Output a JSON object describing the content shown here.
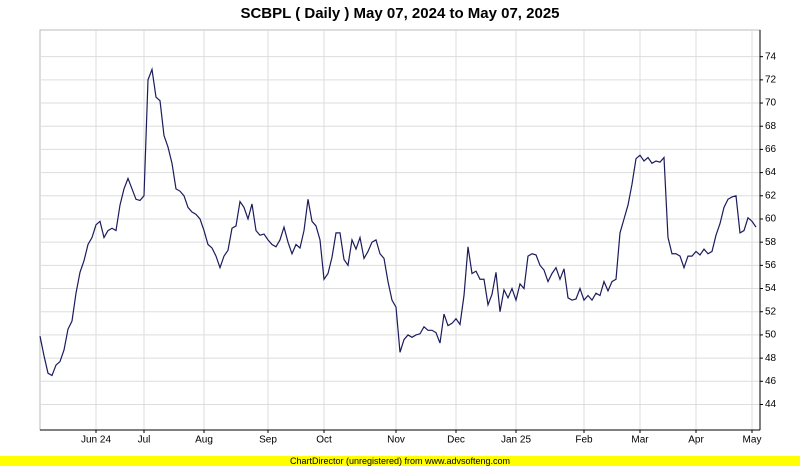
{
  "chart_data": {
    "type": "line",
    "title": "SCBPL ( Daily ) May 07, 2024 to May 07, 2025",
    "color": "#1b1b5c",
    "grid": true,
    "y_axis_side": "right",
    "categories": [
      null,
      null,
      null,
      null,
      null,
      null,
      null,
      null,
      null,
      null,
      null,
      null,
      null,
      null,
      "Jun 24",
      null,
      null,
      null,
      null,
      null,
      null,
      null,
      null,
      null,
      null,
      null,
      "Jul",
      null,
      null,
      null,
      null,
      null,
      null,
      null,
      null,
      null,
      null,
      null,
      null,
      null,
      null,
      "Aug",
      null,
      null,
      null,
      null,
      null,
      null,
      null,
      null,
      null,
      null,
      null,
      null,
      null,
      null,
      null,
      "Sep",
      null,
      null,
      null,
      null,
      null,
      null,
      null,
      null,
      null,
      null,
      null,
      null,
      null,
      "Oct",
      null,
      null,
      null,
      null,
      null,
      null,
      null,
      null,
      null,
      null,
      null,
      null,
      null,
      null,
      null,
      null,
      null,
      "Nov",
      null,
      null,
      null,
      null,
      null,
      null,
      null,
      null,
      null,
      null,
      null,
      null,
      null,
      null,
      "Dec",
      null,
      null,
      null,
      null,
      null,
      null,
      null,
      null,
      null,
      null,
      null,
      null,
      null,
      null,
      "Jan 25",
      null,
      null,
      null,
      null,
      null,
      null,
      null,
      null,
      null,
      null,
      null,
      null,
      null,
      null,
      null,
      null,
      "Feb",
      null,
      null,
      null,
      null,
      null,
      null,
      null,
      null,
      null,
      null,
      null,
      null,
      null,
      "Mar",
      null,
      null,
      null,
      null,
      null,
      null,
      null,
      null,
      null,
      null,
      null,
      null,
      null,
      "Apr",
      null,
      null,
      null,
      null,
      null,
      null,
      null,
      null,
      null,
      null,
      null,
      null,
      null,
      "May",
      null
    ],
    "values": [
      49.9,
      48.2,
      46.7,
      46.5,
      47.4,
      47.7,
      48.7,
      50.5,
      51.2,
      53.6,
      55.4,
      56.4,
      57.8,
      58.4,
      59.5,
      59.8,
      58.4,
      59.0,
      59.2,
      59.0,
      61.2,
      62.6,
      63.5,
      62.6,
      61.7,
      61.6,
      62.0,
      72.0,
      72.9,
      70.5,
      70.2,
      67.2,
      66.2,
      64.8,
      62.6,
      62.4,
      62.0,
      61.0,
      60.6,
      60.4,
      60.0,
      59.0,
      57.8,
      57.5,
      56.8,
      55.8,
      56.8,
      57.3,
      59.2,
      59.4,
      61.5,
      61.0,
      60.0,
      61.3,
      59.0,
      58.6,
      58.7,
      58.2,
      57.8,
      57.6,
      58.2,
      59.3,
      58.0,
      57.0,
      57.8,
      57.5,
      59.0,
      61.7,
      59.8,
      59.4,
      58.2,
      54.8,
      55.3,
      56.7,
      58.8,
      58.8,
      56.5,
      56.0,
      58.2,
      57.4,
      58.4,
      56.6,
      57.2,
      58.0,
      58.2,
      57.0,
      56.6,
      54.6,
      53.0,
      52.4,
      48.5,
      49.6,
      50.0,
      49.8,
      50.0,
      50.1,
      50.7,
      50.4,
      50.4,
      50.2,
      49.3,
      51.8,
      50.8,
      51.0,
      51.4,
      50.9,
      53.4,
      57.6,
      55.3,
      55.5,
      54.8,
      54.8,
      52.6,
      53.5,
      55.4,
      52.0,
      53.9,
      53.2,
      54.0,
      53.0,
      54.4,
      54.0,
      56.8,
      57.0,
      56.9,
      56.0,
      55.6,
      54.6,
      55.3,
      55.8,
      54.8,
      55.7,
      53.2,
      53.0,
      53.1,
      54.0,
      53.0,
      53.4,
      53.0,
      53.6,
      53.4,
      54.6,
      53.8,
      54.6,
      54.8,
      58.8,
      60.0,
      61.2,
      63.0,
      65.2,
      65.5,
      65.0,
      65.3,
      64.8,
      65.0,
      64.9,
      65.3,
      58.4,
      57.0,
      57.0,
      56.8,
      55.8,
      56.8,
      56.8,
      57.2,
      56.9,
      57.4,
      57.0,
      57.2,
      58.6,
      59.6,
      61.0,
      61.7,
      61.9,
      62.0,
      58.8,
      59.0,
      60.1,
      59.8,
      59.3
    ],
    "ylim": [
      41.8,
      76.3
    ],
    "yticks": [
      44,
      46,
      48,
      50,
      52,
      54,
      56,
      58,
      60,
      62,
      64,
      66,
      68,
      70,
      72,
      74
    ]
  },
  "footer": "ChartDirector (unregistered) from www.advsofteng.com"
}
